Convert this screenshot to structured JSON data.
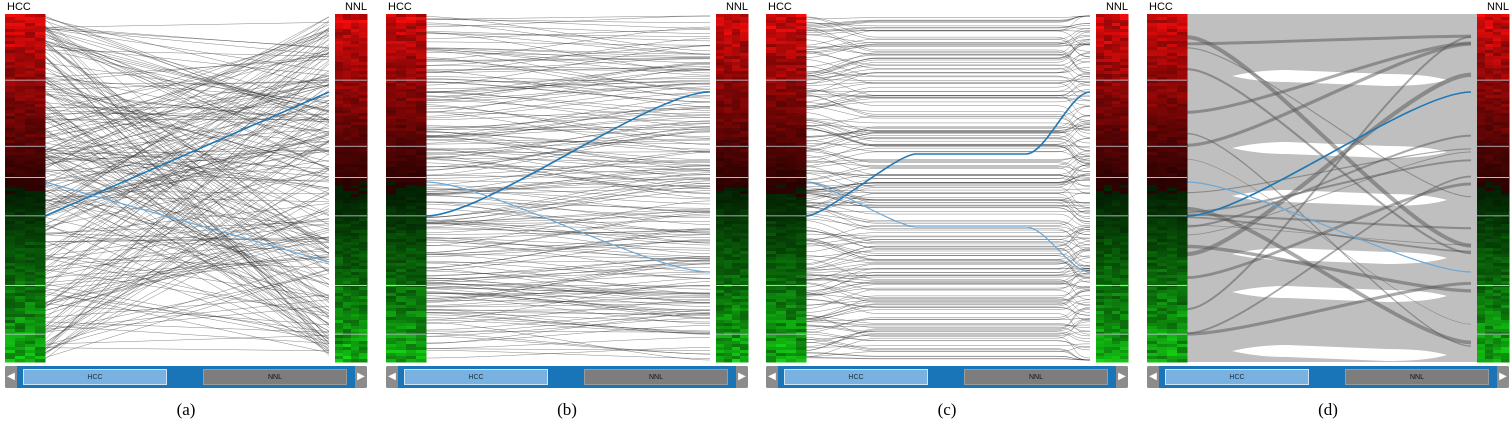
{
  "panels": [
    {
      "id": "a",
      "caption": "(a)",
      "left_label": "HCC",
      "right_label": "NNL",
      "style": "lines",
      "nav": {
        "prev_icon": "chevron-left-icon",
        "next_icon": "chevron-right-icon",
        "seg_left": "HCC",
        "seg_right": "NNL"
      }
    },
    {
      "id": "b",
      "caption": "(b)",
      "left_label": "HCC",
      "right_label": "NNL",
      "style": "curves",
      "nav": {
        "prev_icon": "chevron-left-icon",
        "next_icon": "chevron-right-icon",
        "seg_left": "HCC",
        "seg_right": "NNL"
      }
    },
    {
      "id": "c",
      "caption": "(c)",
      "left_label": "HCC",
      "right_label": "NNL",
      "style": "bundled",
      "nav": {
        "prev_icon": "chevron-left-icon",
        "next_icon": "chevron-right-icon",
        "seg_left": "HCC",
        "seg_right": "NNL"
      }
    },
    {
      "id": "d",
      "caption": "(d)",
      "left_label": "HCC",
      "right_label": "NNL",
      "style": "ribbons",
      "nav": {
        "prev_icon": "chevron-left-icon",
        "next_icon": "chevron-right-icon",
        "seg_left": "HCC",
        "seg_right": "NNL"
      }
    }
  ],
  "colors": {
    "highlight": "#1f78b4",
    "highlight_light": "#6aa8d8",
    "ribbon_bg": "#bfbfbf",
    "link": "#333333",
    "nav_bg": "#1a75b8",
    "nav_hcc": "#79b2e0",
    "nav_nnl": "#7d7d7d",
    "heat_red": "#ff1a1a",
    "heat_green": "#1aa81a"
  }
}
